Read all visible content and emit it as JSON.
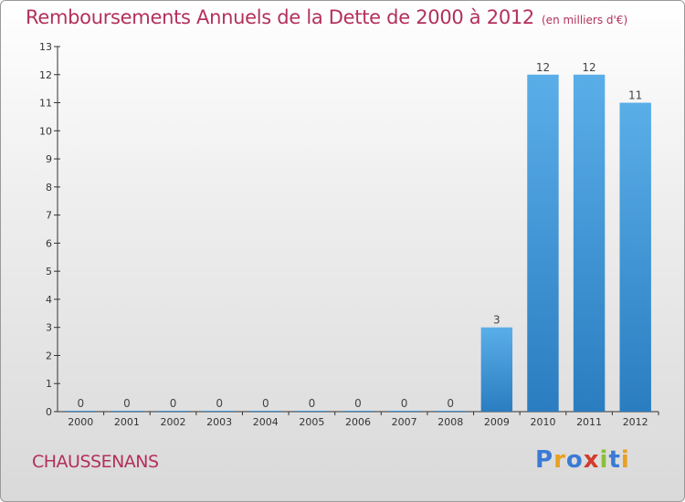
{
  "title": "Remboursements Annuels de la Dette de 2000 à 2012",
  "unit_note": "(en milliers d'€)",
  "commune": "CHAUSSENANS",
  "logo": {
    "text": "Proxiti",
    "letters": [
      "P",
      "r",
      "o",
      "x",
      "i",
      "t",
      "i"
    ],
    "colors": [
      "#3a7bd5",
      "#e8a020",
      "#3a7bd5",
      "#d23c2c",
      "#8bbf3a",
      "#3a7bd5",
      "#e8a020"
    ]
  },
  "colors": {
    "title": "#b3305a",
    "bar_light": "#5aaee8",
    "bar_dark": "#2a7dc0",
    "axis": "#333333"
  },
  "chart_data": {
    "type": "bar",
    "categories": [
      "2000",
      "2001",
      "2002",
      "2003",
      "2004",
      "2005",
      "2006",
      "2007",
      "2008",
      "2009",
      "2010",
      "2011",
      "2012"
    ],
    "values": [
      0,
      0,
      0,
      0,
      0,
      0,
      0,
      0,
      0,
      3,
      12,
      12,
      11
    ],
    "ylim": [
      0,
      13
    ],
    "yticks": [
      0,
      1,
      2,
      3,
      4,
      5,
      6,
      7,
      8,
      9,
      10,
      11,
      12,
      13
    ],
    "xlabel": "",
    "ylabel": "",
    "grid": false
  }
}
